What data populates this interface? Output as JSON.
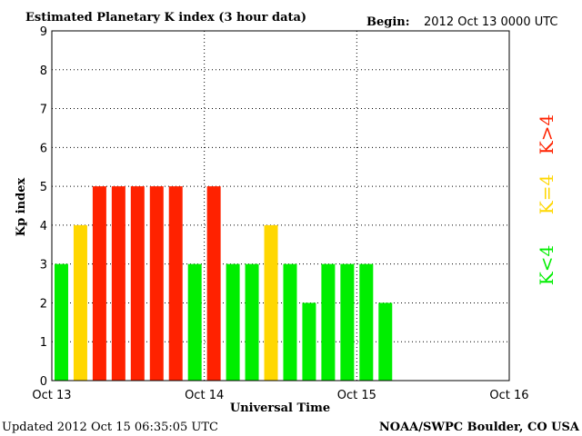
{
  "header": {
    "title": "Estimated Planetary K index (3 hour data)",
    "begin_label": "Begin:",
    "begin_value": "2012 Oct 13 0000 UTC"
  },
  "footer": {
    "updated": "Updated 2012 Oct 15 06:35:05 UTC",
    "credit": "NOAA/SWPC Boulder, CO USA"
  },
  "legend": {
    "low": "K<4",
    "equal": "K=4",
    "high": "K>4"
  },
  "colors": {
    "low": "#00ee00",
    "equal": "#ffd700",
    "high": "#ff2200"
  },
  "chart_data": {
    "type": "bar",
    "title": "Estimated Planetary K index (3 hour data)",
    "xlabel": "Universal Time",
    "ylabel": "Kp index",
    "ylim": [
      0,
      9
    ],
    "yticks": [
      0,
      1,
      2,
      3,
      4,
      5,
      6,
      7,
      8,
      9
    ],
    "xticks": [
      "Oct 13",
      "Oct 14",
      "Oct 15",
      "Oct 16"
    ],
    "grid": true,
    "values": [
      3,
      4,
      5,
      5,
      5,
      5,
      5,
      3,
      5,
      3,
      3,
      4,
      3,
      2,
      3,
      3,
      3,
      2
    ]
  }
}
